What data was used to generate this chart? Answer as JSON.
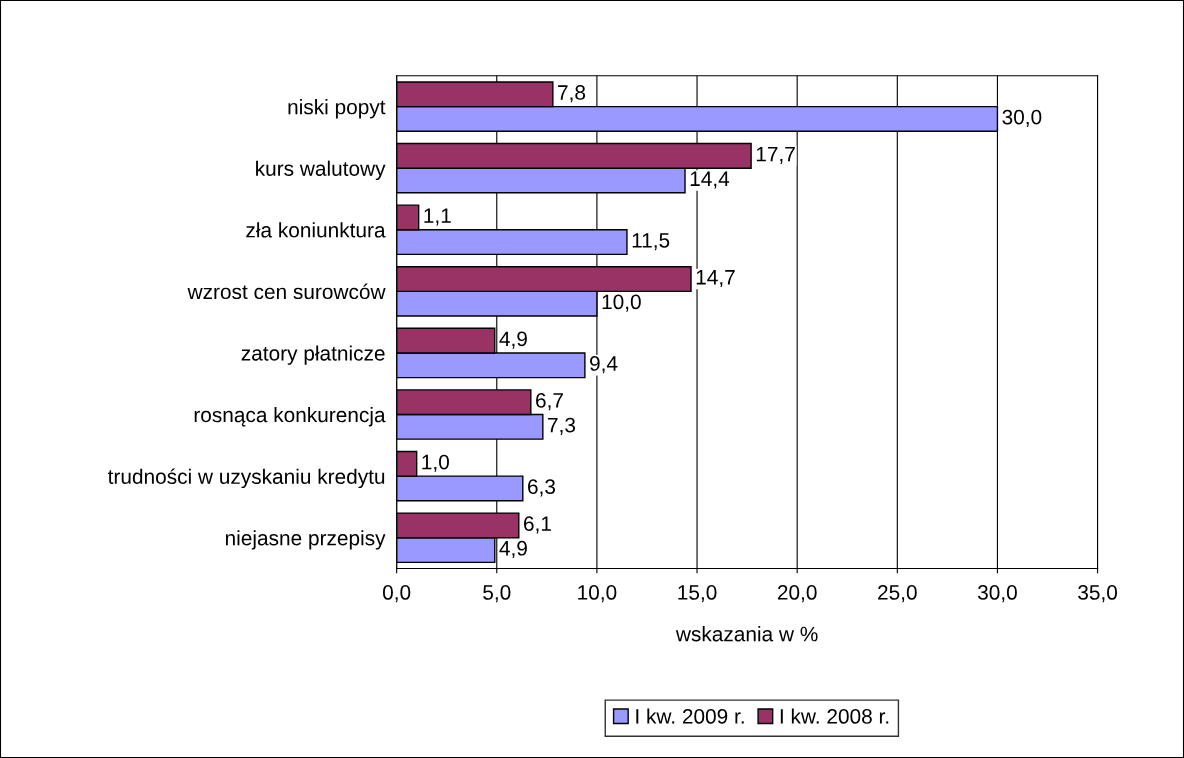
{
  "chart_data": {
    "type": "bar",
    "orientation": "horizontal",
    "categories": [
      "niski popyt",
      "kurs walutowy",
      "zła koniunktura",
      "wzrost cen surowców",
      "zatory płatnicze",
      "rosnąca konkurencja",
      "trudności w uzyskaniu kredytu",
      "niejasne przepisy"
    ],
    "series": [
      {
        "name": "I kw. 2009 r.",
        "color": "#9999ff",
        "values": [
          30.0,
          14.4,
          11.5,
          10.0,
          9.4,
          7.3,
          6.3,
          4.9
        ],
        "value_labels": [
          "30,0",
          "14,4",
          "11,5",
          "10,0",
          "9,4",
          "7,3",
          "6,3",
          "4,9"
        ]
      },
      {
        "name": "I kw. 2008 r.",
        "color": "#993366",
        "values": [
          7.8,
          17.7,
          1.1,
          14.7,
          4.9,
          6.7,
          1.0,
          6.1
        ],
        "value_labels": [
          "7,8",
          "17,7",
          "1,1",
          "14,7",
          "4,9",
          "6,7",
          "1,0",
          "6,1"
        ]
      }
    ],
    "xlim": [
      0,
      35
    ],
    "xticks": [
      {
        "value": 0,
        "label": "0,0"
      },
      {
        "value": 5,
        "label": "5,0"
      },
      {
        "value": 10,
        "label": "10,0"
      },
      {
        "value": 15,
        "label": "15,0"
      },
      {
        "value": 20,
        "label": "20,0"
      },
      {
        "value": 25,
        "label": "25,0"
      },
      {
        "value": 30,
        "label": "30,0"
      },
      {
        "value": 35,
        "label": "35,0"
      }
    ],
    "xlabel": "wskazania w %",
    "grid": "x",
    "legend": "bottom"
  }
}
